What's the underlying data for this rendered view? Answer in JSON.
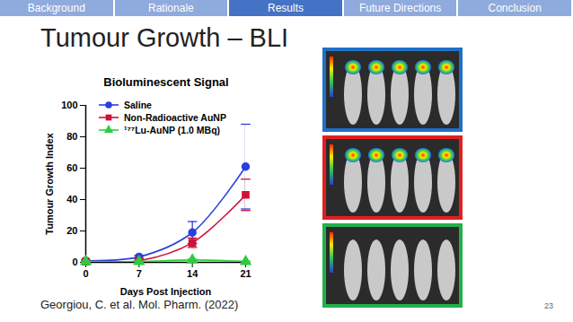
{
  "slide": {
    "nav": [
      "Background",
      "Rationale",
      "Results",
      "Future Directions",
      "Conclusion"
    ],
    "active": "Results",
    "heading": "Tumour Growth – BLI",
    "citation": "Georgiou, C. et al. Mol. Pharm. (2022)",
    "page": 23
  },
  "chart_data": {
    "type": "line",
    "title": "Bioluminescent Signal",
    "x_label": "Days Post Injection",
    "y_label": "Tumour Growth Index",
    "x": [
      0,
      7,
      14,
      21
    ],
    "xlim": [
      0,
      21
    ],
    "xticks": [
      0,
      7,
      14,
      21
    ],
    "ylim": [
      0,
      100
    ],
    "yticks": [
      0,
      20,
      40,
      60,
      80,
      100
    ],
    "legend": "top-left",
    "series": [
      {
        "name": "Saline",
        "color": "#2b3fdc",
        "marker": "circle",
        "line_style": "solid",
        "values": [
          1,
          3.5,
          19,
          61
        ],
        "errors": [
          0.5,
          1,
          7,
          27
        ]
      },
      {
        "name": "Non-Radioactive AuNP",
        "color": "#d0103a",
        "marker": "square",
        "line_style": "solid",
        "values": [
          0.5,
          1,
          12.5,
          43
        ],
        "errors": [
          0.3,
          0.5,
          3,
          10
        ]
      },
      {
        "name": "¹⁷⁷Lu-AuNP (1.0 MBq)",
        "color": "#2ecc40",
        "marker": "triangle",
        "line_style": "solid",
        "values": [
          0.5,
          0.5,
          1.5,
          0.5
        ],
        "errors": [
          0.2,
          0.2,
          0.5,
          0.3
        ]
      }
    ]
  }
}
